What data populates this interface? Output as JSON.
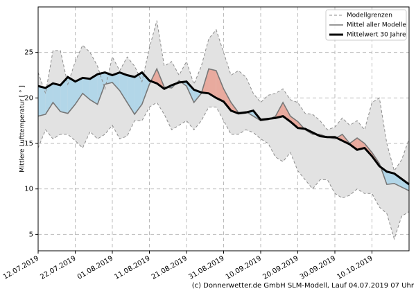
{
  "chart_data": {
    "type": "line",
    "y_label": "Mittlere Lufttemperatur [ ° ]",
    "footer": "(c) Donnerwetter.de GmbH SLM-Modell, Lauf 04.07.2019 07 Uhr",
    "x": [
      "2019-07-12",
      "2019-07-14",
      "2019-07-16",
      "2019-07-18",
      "2019-07-20",
      "2019-07-22",
      "2019-07-24",
      "2019-07-26",
      "2019-07-28",
      "2019-07-30",
      "2019-08-01",
      "2019-08-03",
      "2019-08-05",
      "2019-08-07",
      "2019-08-09",
      "2019-08-11",
      "2019-08-13",
      "2019-08-15",
      "2019-08-17",
      "2019-08-19",
      "2019-08-21",
      "2019-08-23",
      "2019-08-25",
      "2019-08-27",
      "2019-08-29",
      "2019-08-31",
      "2019-09-02",
      "2019-09-04",
      "2019-09-06",
      "2019-09-08",
      "2019-09-10",
      "2019-09-12",
      "2019-09-14",
      "2019-09-16",
      "2019-09-18",
      "2019-09-20",
      "2019-09-22",
      "2019-09-24",
      "2019-09-26",
      "2019-09-28",
      "2019-09-30",
      "2019-10-02",
      "2019-10-04",
      "2019-10-06",
      "2019-10-08",
      "2019-10-10",
      "2019-10-12",
      "2019-10-14",
      "2019-10-16",
      "2019-10-18",
      "2019-10-20"
    ],
    "series": [
      {
        "name": "Modellgrenzen",
        "color": "#8c8c8c",
        "fill_color": "#e2e2e2",
        "values": [
          22.8,
          20.5,
          25.2,
          25.2,
          21.5,
          24.0,
          25.8,
          25.0,
          23.5,
          21.0,
          24.5,
          23.0,
          24.5,
          23.5,
          21.8,
          25.5,
          28.5,
          23.5,
          24.0,
          22.5,
          24.0,
          21.5,
          23.5,
          26.5,
          27.5,
          25.0,
          22.5,
          23.0,
          22.3,
          20.5,
          19.5,
          20.3,
          20.5,
          21.0,
          19.8,
          19.5,
          18.3,
          18.2,
          17.5,
          16.5,
          16.8,
          17.8,
          17.0,
          17.5,
          16.5,
          19.5,
          20.0,
          15.0,
          12.0,
          13.2,
          15.5
        ],
        "lower": [
          14.5,
          16.5,
          15.5,
          16.0,
          16.0,
          15.3,
          14.5,
          16.3,
          15.5,
          16.0,
          17.0,
          15.5,
          15.8,
          17.5,
          17.5,
          19.0,
          19.5,
          18.2,
          16.5,
          17.0,
          17.5,
          16.5,
          17.5,
          19.0,
          19.0,
          17.5,
          16.0,
          16.0,
          16.5,
          16.2,
          15.5,
          15.0,
          13.5,
          13.0,
          14.0,
          12.0,
          11.0,
          10.0,
          11.0,
          11.0,
          9.5,
          9.0,
          9.3,
          10.0,
          9.5,
          9.5,
          8.0,
          7.3,
          4.5,
          7.0,
          7.5
        ]
      },
      {
        "name": "Mittel aller Modelle",
        "color": "#777777",
        "values": [
          18.0,
          18.2,
          19.5,
          18.5,
          18.3,
          19.3,
          20.5,
          19.8,
          19.3,
          21.5,
          21.7,
          20.8,
          19.5,
          18.2,
          19.3,
          21.5,
          23.2,
          21.2,
          21.1,
          21.9,
          21.3,
          19.5,
          20.5,
          23.2,
          23.0,
          21.0,
          19.5,
          18.4,
          18.5,
          18.0,
          17.5,
          17.6,
          18.0,
          19.5,
          18.0,
          17.4,
          16.5,
          16.0,
          16.0,
          15.7,
          15.5,
          16.0,
          15.0,
          15.6,
          15.0,
          14.0,
          12.8,
          10.5,
          10.6,
          10.2,
          9.8
        ]
      },
      {
        "name": "Mittelwert 30 Jahre",
        "color": "#000000",
        "values": [
          21.3,
          21.1,
          21.6,
          21.4,
          22.3,
          21.8,
          22.2,
          22.1,
          22.6,
          22.8,
          22.5,
          22.8,
          22.5,
          22.3,
          22.8,
          21.9,
          21.6,
          21.0,
          21.4,
          21.7,
          21.8,
          20.9,
          20.6,
          20.5,
          20.0,
          19.6,
          18.6,
          18.3,
          18.4,
          18.6,
          17.6,
          17.7,
          17.8,
          18.0,
          17.4,
          16.7,
          16.6,
          16.2,
          15.8,
          15.7,
          15.7,
          15.3,
          14.9,
          14.3,
          14.5,
          13.6,
          12.5,
          11.9,
          11.7,
          11.1,
          10.5
        ]
      }
    ],
    "above_color": "#e8aa9e",
    "below_color": "#b2d6e8",
    "xlim": [
      "2019-07-12",
      "2019-10-20"
    ],
    "xticks": [
      {
        "value": "2019-07-12",
        "label": "12.07.2019"
      },
      {
        "value": "2019-07-22",
        "label": "22.07.2019"
      },
      {
        "value": "2019-08-01",
        "label": "01.08.2019"
      },
      {
        "value": "2019-08-11",
        "label": "11.08.2019"
      },
      {
        "value": "2019-08-21",
        "label": "21.08.2019"
      },
      {
        "value": "2019-08-31",
        "label": "31.08.2019"
      },
      {
        "value": "2019-09-10",
        "label": "10.09.2019"
      },
      {
        "value": "2019-09-20",
        "label": "20.09.2019"
      },
      {
        "value": "2019-09-30",
        "label": "30.09.2019"
      },
      {
        "value": "2019-10-10",
        "label": "10.10.2019"
      }
    ],
    "ylim": [
      3.2,
      30
    ],
    "yticks": [
      5,
      10,
      15,
      20,
      25
    ],
    "grid": true,
    "legend": "upper right"
  }
}
